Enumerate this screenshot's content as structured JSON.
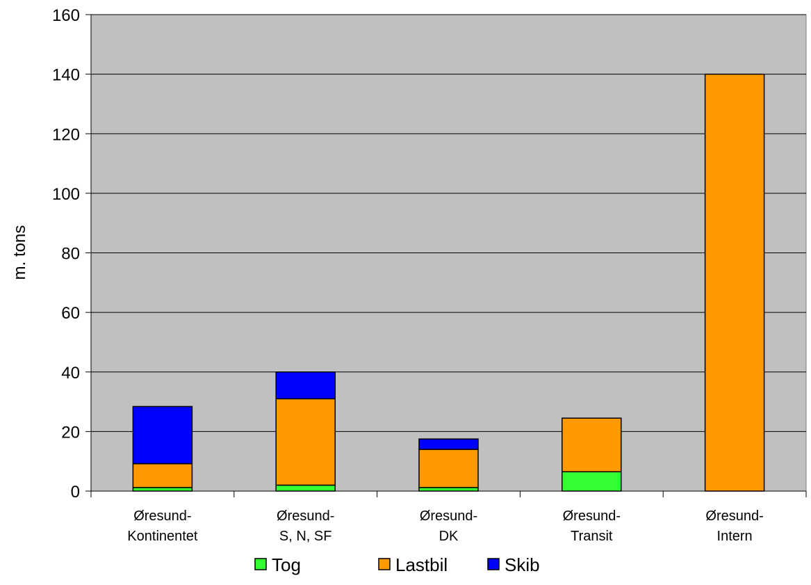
{
  "chart_data": {
    "type": "bar",
    "stacked": true,
    "categories": [
      [
        "Øresund-",
        "Kontinentet"
      ],
      [
        "Øresund-",
        "S, N, SF"
      ],
      [
        "Øresund-",
        "DK"
      ],
      [
        "Øresund-",
        "Transit"
      ],
      [
        "Øresund-",
        "Intern"
      ]
    ],
    "series": [
      {
        "name": "Tog",
        "color": "#33ff33",
        "values": [
          1.2,
          2.0,
          1.2,
          6.5,
          0
        ]
      },
      {
        "name": "Lastbil",
        "color": "#ff9900",
        "values": [
          8.0,
          29.0,
          12.8,
          18.0,
          140
        ]
      },
      {
        "name": "Skib",
        "color": "#0000ff",
        "values": [
          19.2,
          9.0,
          3.5,
          0,
          0
        ]
      }
    ],
    "title": "",
    "xlabel": "",
    "ylabel": "m. tons",
    "ylim": [
      0,
      160
    ],
    "yticks": [
      0,
      20,
      40,
      60,
      80,
      100,
      120,
      140,
      160
    ],
    "grid": true,
    "plot_background": "#c0c0c0",
    "legend_position": "bottom"
  }
}
